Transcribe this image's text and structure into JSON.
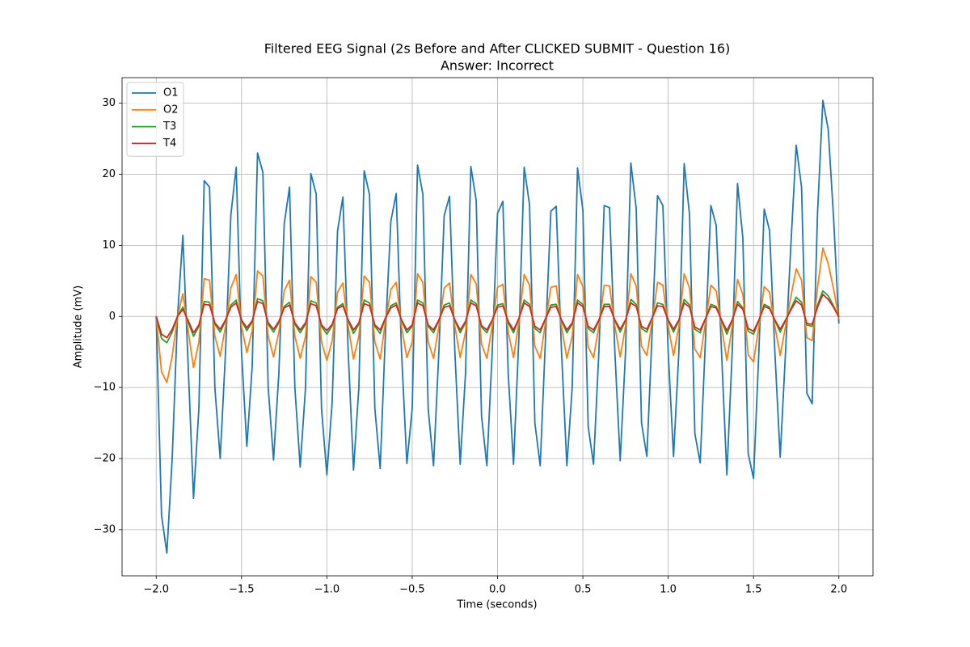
{
  "chart_data": {
    "type": "line",
    "title": "Filtered EEG Signal (2s Before and After CLICKED SUBMIT - Question 16)",
    "subtitle": "Answer: Incorrect",
    "xlabel": "Time (seconds)",
    "ylabel": "Amplitude (mV)",
    "grid": true,
    "legend": "upper left",
    "xlim": [
      -2.2,
      2.2
    ],
    "ylim": [
      -36.5,
      33.6
    ],
    "xticks": [
      {
        "value": -2,
        "label": "−2.0"
      },
      {
        "value": -1.5,
        "label": "−1.5"
      },
      {
        "value": -1,
        "label": "−1.0"
      },
      {
        "value": -0.5,
        "label": "−0.5"
      },
      {
        "value": 0,
        "label": "0.0"
      },
      {
        "value": 0.5,
        "label": "0.5"
      },
      {
        "value": 1,
        "label": "1.0"
      },
      {
        "value": 1.5,
        "label": "1.5"
      },
      {
        "value": 2,
        "label": "2.0"
      }
    ],
    "yticks": [
      {
        "value": -30,
        "label": "−30"
      },
      {
        "value": -20,
        "label": "−20"
      },
      {
        "value": -10,
        "label": "−10"
      },
      0,
      10,
      20,
      30
    ],
    "x": [
      -2,
      -1.96875,
      -1.9375,
      -1.90625,
      -1.875,
      -1.84375,
      -1.8125,
      -1.78125,
      -1.75,
      -1.71875,
      -1.6875,
      -1.65625,
      -1.625,
      -1.59375,
      -1.5625,
      -1.53125,
      -1.5,
      -1.46875,
      -1.4375,
      -1.40625,
      -1.375,
      -1.34375,
      -1.3125,
      -1.28125,
      -1.25,
      -1.21875,
      -1.1875,
      -1.15625,
      -1.125,
      -1.09375,
      -1.0625,
      -1.03125,
      -1,
      -0.96875,
      -0.9375,
      -0.90625,
      -0.875,
      -0.84375,
      -0.8125,
      -0.78125,
      -0.75,
      -0.71875,
      -0.6875,
      -0.65625,
      -0.625,
      -0.59375,
      -0.5625,
      -0.53125,
      -0.5,
      -0.46875,
      -0.4375,
      -0.40625,
      -0.375,
      -0.34375,
      -0.3125,
      -0.28125,
      -0.25,
      -0.21875,
      -0.1875,
      -0.15625,
      -0.125,
      -0.09375,
      -0.0625,
      -0.03125,
      0,
      0.03125,
      0.0625,
      0.09375,
      0.125,
      0.15625,
      0.1875,
      0.21875,
      0.25,
      0.28125,
      0.3125,
      0.34375,
      0.375,
      0.40625,
      0.4375,
      0.46875,
      0.5,
      0.53125,
      0.5625,
      0.59375,
      0.625,
      0.65625,
      0.6875,
      0.71875,
      0.75,
      0.78125,
      0.8125,
      0.84375,
      0.875,
      0.90625,
      0.9375,
      0.96875,
      1,
      1.03125,
      1.0625,
      1.09375,
      1.125,
      1.15625,
      1.1875,
      1.21875,
      1.25,
      1.28125,
      1.3125,
      1.34375,
      1.375,
      1.40625,
      1.4375,
      1.46875,
      1.5,
      1.53125,
      1.5625,
      1.59375,
      1.625,
      1.65625,
      1.6875,
      1.71875,
      1.75,
      1.78125,
      1.8125,
      1.84375,
      1.875,
      1.90625,
      1.9375,
      1.96875,
      2
    ],
    "series": [
      {
        "name": "O1",
        "color": "#1f77b4",
        "values": [
          0,
          -28,
          -33.3,
          -20,
          0,
          11.4,
          -7,
          -25.6,
          -13,
          19.1,
          18.2,
          -10,
          -20,
          -5,
          14.3,
          21,
          -5,
          -18.3,
          -7,
          23,
          20.3,
          -10,
          -20.2,
          -8,
          13,
          18.2,
          -10,
          -21.2,
          -10,
          20.1,
          17.2,
          -13,
          -22.3,
          -12,
          12,
          16.8,
          -5,
          -21.6,
          -10,
          20.5,
          17.1,
          -13,
          -21.4,
          -2,
          13.4,
          17.3,
          -5,
          -20.7,
          -13,
          21.3,
          17.2,
          -13,
          -21,
          -5,
          14.2,
          16.9,
          -5,
          -20.8,
          -8,
          21.1,
          16.3,
          -14,
          -21,
          -5,
          14.5,
          16.2,
          -8,
          -20.8,
          -3,
          21,
          15.7,
          -15,
          -21,
          -3,
          14.8,
          15.5,
          -5,
          -21,
          -10,
          20.9,
          15,
          -15.5,
          -20.8,
          -5,
          15.6,
          15.3,
          -5,
          -20.3,
          -5,
          21.6,
          15.2,
          -15,
          -19.7,
          -2,
          17,
          15.6,
          -5,
          -19.7,
          -5,
          21.5,
          14.3,
          -16.5,
          -20.6,
          -3,
          15.6,
          12.8,
          -5,
          -22.3,
          -5,
          18.7,
          11,
          -19.3,
          -22.8,
          -5,
          15.1,
          12.1,
          -5,
          -19.8,
          -5,
          10,
          24.1,
          18.2,
          -10.8,
          -12.3,
          14.6,
          30.4,
          26.3,
          14,
          -1
        ]
      },
      {
        "name": "O2",
        "color": "#ff7f0e",
        "values": [
          0,
          -7.8,
          -9.3,
          -5.6,
          0,
          3.2,
          -2,
          -7.2,
          -3.6,
          5.3,
          5.1,
          -2.8,
          -5.6,
          -1.4,
          4,
          5.9,
          -1.4,
          -5.1,
          -2,
          6.4,
          5.7,
          -2.8,
          -5.7,
          -2.2,
          3.6,
          5.1,
          -2.8,
          -5.9,
          -2.8,
          5.6,
          4.8,
          -3.6,
          -6.2,
          -3.4,
          3.4,
          4.7,
          -1.4,
          -6,
          -2.8,
          5.7,
          4.8,
          -3.6,
          -6,
          -0.6,
          3.8,
          4.8,
          -1.4,
          -5.8,
          -3.6,
          6,
          4.8,
          -3.6,
          -5.9,
          -1.4,
          4,
          4.7,
          -1.4,
          -5.8,
          -2.2,
          5.9,
          4.6,
          -3.9,
          -5.9,
          -1.4,
          4.1,
          4.5,
          -2.2,
          -5.8,
          -0.8,
          5.9,
          4.4,
          -4.2,
          -5.9,
          -0.8,
          4.1,
          4.3,
          -1.4,
          -5.9,
          -2.8,
          5.9,
          4.2,
          -4.3,
          -5.8,
          -1.4,
          4.4,
          4.3,
          -1.4,
          -5.7,
          -1.4,
          6,
          4.3,
          -4.2,
          -5.5,
          -0.6,
          4.8,
          4.4,
          -1.4,
          -5.5,
          -1.4,
          6,
          4,
          -4.6,
          -5.8,
          -0.8,
          4.4,
          3.6,
          -1.4,
          -6.2,
          -1.4,
          5.2,
          3.1,
          -5.4,
          -6.4,
          -1.4,
          4.2,
          3.4,
          -1.4,
          -5.5,
          -1.4,
          2.8,
          6.7,
          5.1,
          -3,
          -3.4,
          4.1,
          9.6,
          7.4,
          3.9,
          -0.3
        ]
      },
      {
        "name": "T3",
        "color": "#2ca02c",
        "values": [
          0,
          -3.1,
          -3.7,
          -2.2,
          0,
          1.3,
          -0.8,
          -2.8,
          -1.4,
          2.1,
          2,
          -1.1,
          -2.2,
          -0.6,
          1.6,
          2.3,
          -0.6,
          -2,
          -0.8,
          2.5,
          2.2,
          -1.1,
          -2.2,
          -0.9,
          1.4,
          2,
          -1.1,
          -2.3,
          -1.1,
          2.2,
          1.9,
          -1.4,
          -2.5,
          -1.3,
          1.3,
          1.8,
          -0.6,
          -2.4,
          -1.1,
          2.3,
          1.9,
          -1.4,
          -2.4,
          -0.2,
          1.5,
          1.9,
          -0.6,
          -2.3,
          -1.4,
          2.3,
          1.9,
          -1.4,
          -2.3,
          -0.6,
          1.6,
          1.9,
          -0.6,
          -2.3,
          -0.9,
          2.3,
          1.8,
          -1.5,
          -2.3,
          -0.6,
          1.6,
          1.8,
          -0.9,
          -2.3,
          -0.3,
          2.3,
          1.7,
          -1.7,
          -2.3,
          -0.3,
          1.6,
          1.7,
          -0.6,
          -2.3,
          -1.1,
          2.3,
          1.7,
          -1.7,
          -2.3,
          -0.6,
          1.7,
          1.7,
          -0.6,
          -2.2,
          -0.6,
          2.4,
          1.7,
          -1.7,
          -2.2,
          -0.2,
          1.9,
          1.7,
          -0.6,
          -2.2,
          -0.6,
          2.4,
          1.6,
          -1.8,
          -2.3,
          -0.3,
          1.7,
          1.4,
          -0.6,
          -2.5,
          -0.6,
          2.1,
          1.2,
          -2.1,
          -2.5,
          -0.6,
          1.7,
          1.3,
          -0.6,
          -2.2,
          -0.6,
          1.1,
          2.7,
          2,
          -1.2,
          -1.4,
          1.6,
          3.6,
          2.9,
          1.5,
          -0.1
        ]
      },
      {
        "name": "T4",
        "color": "#d62728",
        "values": [
          0,
          -2.5,
          -3,
          -1.8,
          0,
          1,
          -0.6,
          -2.3,
          -1.2,
          1.7,
          1.6,
          -0.9,
          -1.8,
          -0.5,
          1.3,
          1.9,
          -0.5,
          -1.6,
          -0.6,
          2.1,
          1.8,
          -0.9,
          -1.8,
          -0.7,
          1.2,
          1.6,
          -0.9,
          -1.9,
          -0.9,
          1.8,
          1.5,
          -1.2,
          -2,
          -1.1,
          1.1,
          1.5,
          -0.5,
          -1.9,
          -0.9,
          1.8,
          1.5,
          -1.2,
          -1.9,
          -0.2,
          1.2,
          1.6,
          -0.5,
          -1.9,
          -1.2,
          1.9,
          1.5,
          -1.2,
          -1.9,
          -0.5,
          1.3,
          1.5,
          -0.5,
          -1.9,
          -0.7,
          1.9,
          1.5,
          -1.3,
          -1.9,
          -0.5,
          1.3,
          1.5,
          -0.7,
          -1.9,
          -0.3,
          1.9,
          1.4,
          -1.4,
          -1.9,
          -0.3,
          1.3,
          1.4,
          -0.5,
          -1.9,
          -0.9,
          1.9,
          1.4,
          -1.4,
          -1.9,
          -0.5,
          1.4,
          1.4,
          -0.5,
          -1.8,
          -0.5,
          1.9,
          1.4,
          -1.4,
          -1.8,
          -0.2,
          1.5,
          1.4,
          -0.5,
          -1.8,
          -0.5,
          1.9,
          1.3,
          -1.5,
          -1.9,
          -0.3,
          1.4,
          1.2,
          -0.5,
          -2,
          -0.5,
          1.7,
          1,
          -1.7,
          -2.1,
          -0.5,
          1.4,
          1.1,
          -0.5,
          -1.8,
          -0.5,
          0.9,
          2.2,
          1.6,
          -1,
          -1.1,
          1.3,
          3.1,
          2.4,
          1.3,
          -0.1
        ]
      }
    ]
  }
}
